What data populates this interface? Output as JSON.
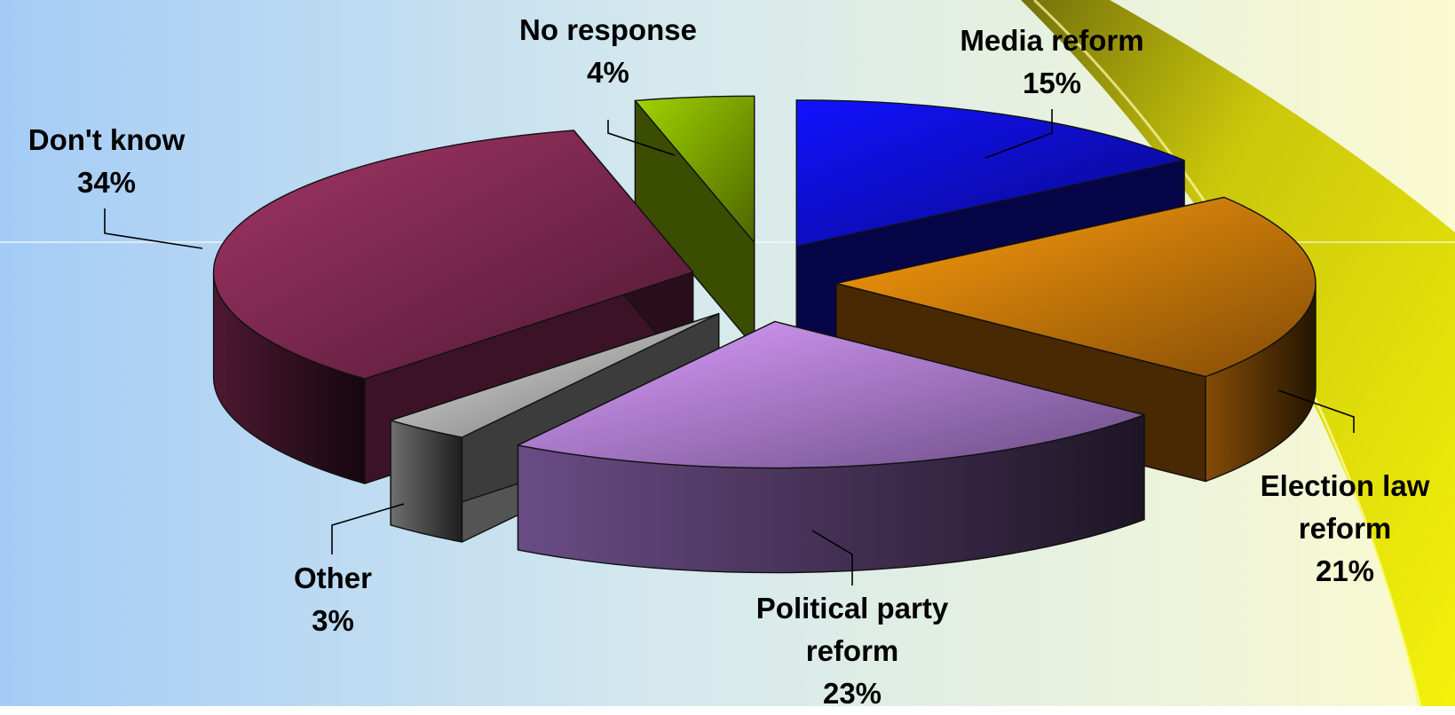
{
  "chart_data": {
    "type": "pie",
    "style": "3d-exploded",
    "slices": [
      {
        "label": "Media reform",
        "value": 15,
        "color": "#1010F0"
      },
      {
        "label": "Election law reform",
        "value": 21,
        "color": "#F08A0A"
      },
      {
        "label": "Political party reform",
        "value": 23,
        "color": "#C08AF2"
      },
      {
        "label": "Other",
        "value": 3,
        "color": "#C8C8C8"
      },
      {
        "label": "Don't know",
        "value": 34,
        "color": "#8E2E5A"
      },
      {
        "label": "No response",
        "value": 4,
        "color": "#8CB800"
      }
    ],
    "data_labels": {
      "media": {
        "l1": "Media reform",
        "pct": "15%"
      },
      "election": {
        "l1": "Election law",
        "l2": "reform",
        "pct": "21%"
      },
      "party": {
        "l1": "Political party",
        "l2": "reform",
        "pct": "23%"
      },
      "other": {
        "l1": "Other",
        "pct": "3%"
      },
      "dontknow": {
        "l1": "Don't know",
        "pct": "34%"
      },
      "noresp": {
        "l1": "No response",
        "pct": "4%"
      }
    },
    "background": {
      "left": "#A8D0F4",
      "right": "#FAFAD2",
      "ribbon": "#F2F000"
    }
  }
}
